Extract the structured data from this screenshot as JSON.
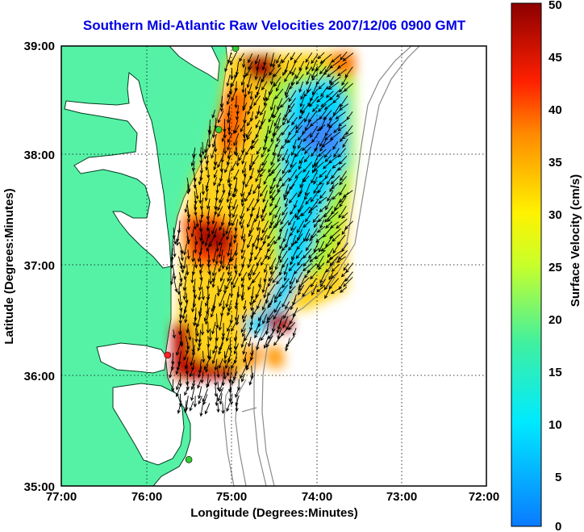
{
  "title": "Southern Mid-Atlantic Raw Velocities 2007/12/06 0900 GMT",
  "x_axis": {
    "label": "Longitude (Degrees:Minutes)",
    "ticks": [
      "77:00",
      "76:00",
      "75:00",
      "74:00",
      "73:00",
      "72:00"
    ]
  },
  "y_axis": {
    "label": "Latitude (Degrees:Minutes)",
    "ticks": [
      "39:00",
      "38:00",
      "37:00",
      "36:00",
      "35:00"
    ]
  },
  "colorbar": {
    "label": "Surface Velocity (cm/s)",
    "ticks": [
      "50",
      "45",
      "40",
      "35",
      "30",
      "25",
      "20",
      "15",
      "10",
      "5",
      "0"
    ],
    "min": 0,
    "max": 50
  },
  "colors": {
    "land": "#55f2a6",
    "title": "#0000e6",
    "bathymetry": "#8c8c8c",
    "station_active": "#33cc33",
    "station_inactive": "#ff2020"
  },
  "stations": [
    {
      "status": "active",
      "lon": -74.95,
      "lat": 38.98
    },
    {
      "status": "active",
      "lon": -75.15,
      "lat": 38.24
    },
    {
      "status": "inactive",
      "lon": -75.75,
      "lat": 36.19
    },
    {
      "status": "active",
      "lon": -75.5,
      "lat": 35.24
    }
  ]
}
